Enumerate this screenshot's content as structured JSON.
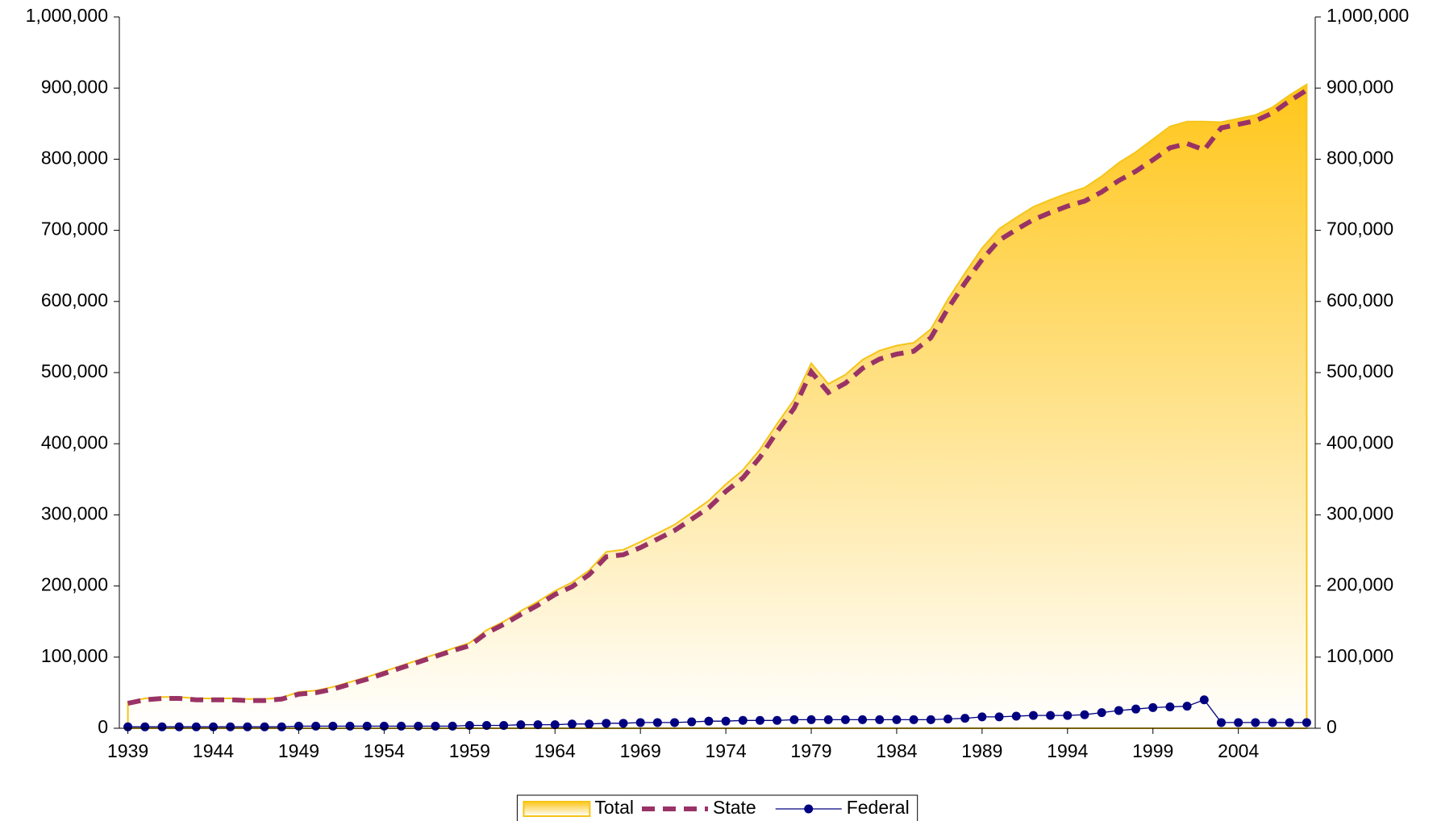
{
  "chart_data": {
    "type": "line",
    "x": [
      1939,
      1940,
      1941,
      1942,
      1943,
      1944,
      1945,
      1946,
      1947,
      1948,
      1949,
      1950,
      1951,
      1952,
      1953,
      1954,
      1955,
      1956,
      1957,
      1958,
      1959,
      1960,
      1961,
      1962,
      1963,
      1964,
      1965,
      1966,
      1967,
      1968,
      1969,
      1970,
      1971,
      1972,
      1973,
      1974,
      1975,
      1976,
      1977,
      1978,
      1979,
      1980,
      1981,
      1982,
      1983,
      1984,
      1985,
      1986,
      1987,
      1988,
      1989,
      1990,
      1991,
      1992,
      1993,
      1994,
      1995,
      1996,
      1997,
      1998,
      1999,
      2000,
      2001,
      2002,
      2003,
      2004,
      2005,
      2006,
      2007,
      2008
    ],
    "xlim": [
      1938.5,
      2008.5
    ],
    "xticks": [
      1939,
      1944,
      1949,
      1954,
      1959,
      1964,
      1969,
      1974,
      1979,
      1984,
      1989,
      1994,
      1999,
      2004
    ],
    "ylim": [
      0,
      1000000
    ],
    "yticks": [
      0,
      {
        "value": 100000,
        "label": "100,000"
      },
      {
        "value": 200000,
        "label": "200,000"
      },
      {
        "value": 300000,
        "label": "300,000"
      },
      {
        "value": 400000,
        "label": "400,000"
      },
      {
        "value": 500000,
        "label": "500,000"
      },
      {
        "value": 600000,
        "label": "600,000"
      },
      {
        "value": 700000,
        "label": "700,000"
      },
      {
        "value": 800000,
        "label": "800,000"
      },
      {
        "value": 900000,
        "label": "900,000"
      },
      {
        "value": 1000000,
        "label": "1,000,000"
      }
    ],
    "y2lim": [
      0,
      1000000
    ],
    "y2ticks": [
      0,
      {
        "value": 100000,
        "label": "100,000"
      },
      {
        "value": 200000,
        "label": "200,000"
      },
      {
        "value": 300000,
        "label": "300,000"
      },
      {
        "value": 400000,
        "label": "400,000"
      },
      {
        "value": 500000,
        "label": "500,000"
      },
      {
        "value": 600000,
        "label": "600,000"
      },
      {
        "value": 700000,
        "label": "700,000"
      },
      {
        "value": 800000,
        "label": "800,000"
      },
      {
        "value": 900000,
        "label": "900,000"
      },
      {
        "value": 1000000,
        "label": "1,000,000"
      }
    ],
    "legend": "bottom",
    "series": [
      {
        "name": "Total",
        "style": "area",
        "color": "#F5C518",
        "values": [
          37000,
          42000,
          44000,
          44000,
          42000,
          42000,
          42000,
          41000,
          41000,
          43000,
          51000,
          53000,
          58000,
          65000,
          72000,
          80000,
          88000,
          96000,
          104000,
          112000,
          120000,
          138000,
          150000,
          165000,
          178000,
          193000,
          205000,
          222000,
          248000,
          251000,
          262000,
          274000,
          286000,
          303000,
          320000,
          343000,
          363000,
          392000,
          428000,
          462000,
          513000,
          484000,
          497000,
          518000,
          531000,
          538000,
          542000,
          561000,
          603000,
          640000,
          675000,
          702000,
          718000,
          733000,
          743000,
          752000,
          760000,
          776000,
          795000,
          810000,
          828000,
          846000,
          853000,
          853000,
          852000,
          857000,
          862000,
          873000,
          890000,
          905000
        ]
      },
      {
        "name": "State",
        "style": "dashed",
        "color": "#993366",
        "values": [
          35000,
          40000,
          42000,
          42000,
          40000,
          40000,
          40000,
          39000,
          39000,
          41000,
          48000,
          50000,
          55000,
          62000,
          69000,
          77000,
          85000,
          93000,
          101000,
          109000,
          116000,
          134000,
          146000,
          160000,
          173000,
          188000,
          199000,
          216000,
          241000,
          244000,
          254000,
          266000,
          278000,
          294000,
          310000,
          333000,
          352000,
          381000,
          417000,
          450000,
          501000,
          472000,
          485000,
          506000,
          519000,
          526000,
          530000,
          549000,
          590000,
          626000,
          659000,
          686000,
          701000,
          715000,
          725000,
          734000,
          741000,
          754000,
          770000,
          783000,
          799000,
          816000,
          822000,
          813000,
          844000,
          849000,
          854000,
          865000,
          882000,
          897000
        ]
      },
      {
        "name": "Federal",
        "style": "marker",
        "color": "#000080",
        "values": [
          2000,
          2000,
          2000,
          2000,
          2000,
          2000,
          2000,
          2000,
          2000,
          2000,
          3000,
          3000,
          3000,
          3000,
          3000,
          3000,
          3000,
          3000,
          3000,
          3000,
          4000,
          4000,
          4000,
          5000,
          5000,
          5000,
          6000,
          6000,
          7000,
          7000,
          8000,
          8000,
          8000,
          9000,
          10000,
          10000,
          11000,
          11000,
          11000,
          12000,
          12000,
          12000,
          12000,
          12000,
          12000,
          12000,
          12000,
          12000,
          13000,
          14000,
          16000,
          16000,
          17000,
          18000,
          18000,
          18000,
          19000,
          22000,
          25000,
          27000,
          29000,
          30000,
          31000,
          40000,
          8000,
          8000,
          8000,
          8000,
          8000,
          8000
        ]
      }
    ]
  }
}
